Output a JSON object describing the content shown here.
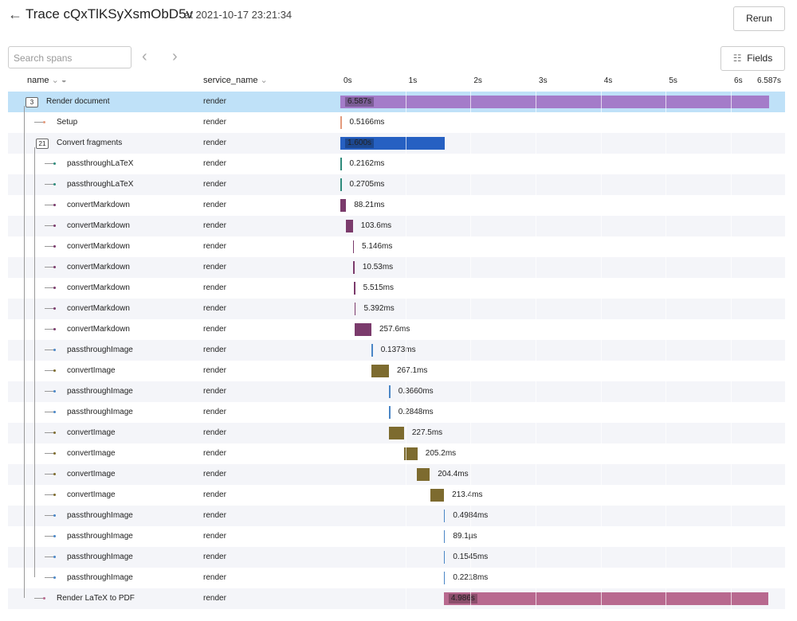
{
  "header": {
    "title": "Trace cQxTlKSyXsmObD5v",
    "timestamp": "at 2021-10-17 23:21:34",
    "rerun": "Rerun"
  },
  "toolbar": {
    "search_placeholder": "Search spans",
    "fields": "Fields"
  },
  "columns": {
    "name": "name",
    "service": "service_name"
  },
  "timeline": {
    "xlim": [
      0,
      6.587
    ],
    "xticks": [
      {
        "value": 0,
        "label": "0s"
      },
      {
        "value": 1,
        "label": "1s"
      },
      {
        "value": 2,
        "label": "2s"
      },
      {
        "value": 3,
        "label": "3s"
      },
      {
        "value": 4,
        "label": "4s"
      },
      {
        "value": 5,
        "label": "5s"
      },
      {
        "value": 6,
        "label": "6s"
      },
      {
        "value": 6.587,
        "label": "6.587s"
      }
    ]
  },
  "spans": [
    {
      "name": "Render document",
      "service": "render",
      "children_count": "3",
      "start": 0,
      "duration": 6.587,
      "duration_label": "6.587s",
      "color": "#a47cc9",
      "children": [
        {
          "name": "Setup",
          "service": "render",
          "start": 0,
          "duration": 0.0005166,
          "duration_label": "0.5166ms",
          "color": "#e39a7c"
        },
        {
          "name": "Convert fragments",
          "service": "render",
          "children_count": "21",
          "start": 0,
          "duration": 1.6,
          "duration_label": "1.600s",
          "color": "#2660c2",
          "children": [
            {
              "name": "passthroughLaTeX",
              "service": "render",
              "start": 0,
              "duration": 0.0002162,
              "duration_label": "0.2162ms",
              "color": "#2e8b7b"
            },
            {
              "name": "passthroughLaTeX",
              "service": "render",
              "start": 0,
              "duration": 0.0002705,
              "duration_label": "0.2705ms",
              "color": "#2e8b7b"
            },
            {
              "name": "convertMarkdown",
              "service": "render",
              "start": 0,
              "duration": 0.08821,
              "duration_label": "88.21ms",
              "color": "#7b3b6c"
            },
            {
              "name": "convertMarkdown",
              "service": "render",
              "start": 0.09,
              "duration": 0.1036,
              "duration_label": "103.6ms",
              "color": "#7b3b6c"
            },
            {
              "name": "convertMarkdown",
              "service": "render",
              "start": 0.19,
              "duration": 0.005146,
              "duration_label": "5.146ms",
              "color": "#7b3b6c"
            },
            {
              "name": "convertMarkdown",
              "service": "render",
              "start": 0.2,
              "duration": 0.01053,
              "duration_label": "10.53ms",
              "color": "#7b3b6c"
            },
            {
              "name": "convertMarkdown",
              "service": "render",
              "start": 0.21,
              "duration": 0.005515,
              "duration_label": "5.515ms",
              "color": "#7b3b6c"
            },
            {
              "name": "convertMarkdown",
              "service": "render",
              "start": 0.22,
              "duration": 0.005392,
              "duration_label": "5.392ms",
              "color": "#7b3b6c"
            },
            {
              "name": "convertMarkdown",
              "service": "render",
              "start": 0.22,
              "duration": 0.2576,
              "duration_label": "257.6ms",
              "color": "#7b3b6c"
            },
            {
              "name": "passthroughImage",
              "service": "render",
              "start": 0.48,
              "duration": 0.0001373,
              "duration_label": "0.1373ms",
              "color": "#4a86c6"
            },
            {
              "name": "convertImage",
              "service": "render",
              "start": 0.48,
              "duration": 0.2671,
              "duration_label": "267.1ms",
              "color": "#7d6b2f"
            },
            {
              "name": "passthroughImage",
              "service": "render",
              "start": 0.75,
              "duration": 0.000366,
              "duration_label": "0.3660ms",
              "color": "#4a86c6"
            },
            {
              "name": "passthroughImage",
              "service": "render",
              "start": 0.75,
              "duration": 0.0002848,
              "duration_label": "0.2848ms",
              "color": "#4a86c6"
            },
            {
              "name": "convertImage",
              "service": "render",
              "start": 0.75,
              "duration": 0.2275,
              "duration_label": "227.5ms",
              "color": "#7d6b2f"
            },
            {
              "name": "convertImage",
              "service": "render",
              "start": 0.98,
              "duration": 0.2052,
              "duration_label": "205.2ms",
              "color": "#7d6b2f"
            },
            {
              "name": "convertImage",
              "service": "render",
              "start": 1.17,
              "duration": 0.2044,
              "duration_label": "204.4ms",
              "color": "#7d6b2f"
            },
            {
              "name": "convertImage",
              "service": "render",
              "start": 1.38,
              "duration": 0.2134,
              "duration_label": "213.4ms",
              "color": "#7d6b2f"
            },
            {
              "name": "passthroughImage",
              "service": "render",
              "start": 1.59,
              "duration": 0.0004984,
              "duration_label": "0.4984ms",
              "color": "#4a86c6"
            },
            {
              "name": "passthroughImage",
              "service": "render",
              "start": 1.59,
              "duration": 8.91e-05,
              "duration_label": "89.1µs",
              "color": "#4a86c6"
            },
            {
              "name": "passthroughImage",
              "service": "render",
              "start": 1.59,
              "duration": 0.0001545,
              "duration_label": "0.1545ms",
              "color": "#4a86c6"
            },
            {
              "name": "passthroughImage",
              "service": "render",
              "start": 1.59,
              "duration": 0.0002218,
              "duration_label": "0.2218ms",
              "color": "#4a86c6"
            }
          ]
        },
        {
          "name": "Render LaTeX to PDF",
          "service": "render",
          "start": 1.59,
          "duration": 4.986,
          "duration_label": "4.986s",
          "color": "#b8698f"
        }
      ]
    }
  ]
}
